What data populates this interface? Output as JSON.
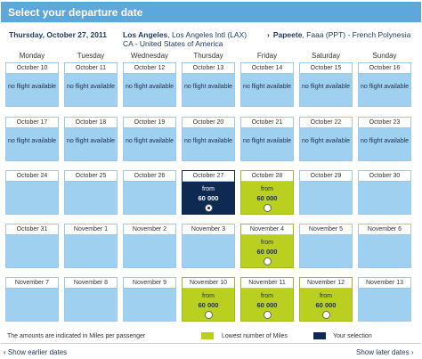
{
  "header": {
    "title": "Select your departure date"
  },
  "info": {
    "date": "Thursday, October 27, 2011",
    "from_city": "Los Angeles",
    "from_rest": ", Los Angeles Intl (LAX) CA - United States of America",
    "arrow": "›",
    "to_city": "Papeete",
    "to_rest": ", Faaa (PPT) - French Polynesia"
  },
  "weekdays": [
    "Monday",
    "Tuesday",
    "Wednesday",
    "Thursday",
    "Friday",
    "Saturday",
    "Sunday"
  ],
  "no_flight_text": "no flight available",
  "from_text": "from",
  "weeks": [
    [
      {
        "date": "October 10",
        "state": "none"
      },
      {
        "date": "October 11",
        "state": "none"
      },
      {
        "date": "October 12",
        "state": "none"
      },
      {
        "date": "October 13",
        "state": "none"
      },
      {
        "date": "October 14",
        "state": "none"
      },
      {
        "date": "October 15",
        "state": "none"
      },
      {
        "date": "October 16",
        "state": "none"
      }
    ],
    [
      {
        "date": "October 17",
        "state": "none"
      },
      {
        "date": "October 18",
        "state": "none"
      },
      {
        "date": "October 19",
        "state": "none"
      },
      {
        "date": "October 20",
        "state": "none"
      },
      {
        "date": "October 21",
        "state": "none"
      },
      {
        "date": "October 22",
        "state": "none"
      },
      {
        "date": "October 23",
        "state": "none"
      }
    ],
    [
      {
        "date": "October 24",
        "state": "blank"
      },
      {
        "date": "October 25",
        "state": "blank"
      },
      {
        "date": "October 26",
        "state": "blank"
      },
      {
        "date": "October 27",
        "state": "selected",
        "miles": "60 000"
      },
      {
        "date": "October 28",
        "state": "lowest",
        "miles": "60 000"
      },
      {
        "date": "October 29",
        "state": "blank"
      },
      {
        "date": "October 30",
        "state": "blank"
      }
    ],
    [
      {
        "date": "October 31",
        "state": "blank"
      },
      {
        "date": "November 1",
        "state": "blank"
      },
      {
        "date": "November 2",
        "state": "blank"
      },
      {
        "date": "November 3",
        "state": "blank"
      },
      {
        "date": "November 4",
        "state": "lowest",
        "miles": "60 000"
      },
      {
        "date": "November 5",
        "state": "blank"
      },
      {
        "date": "November 6",
        "state": "blank"
      }
    ],
    [
      {
        "date": "November 7",
        "state": "blank"
      },
      {
        "date": "November 8",
        "state": "blank"
      },
      {
        "date": "November 9",
        "state": "blank"
      },
      {
        "date": "November 10",
        "state": "lowest",
        "miles": "60 000"
      },
      {
        "date": "November 11",
        "state": "lowest",
        "miles": "60 000"
      },
      {
        "date": "November 12",
        "state": "lowest",
        "miles": "60 000"
      },
      {
        "date": "November 13",
        "state": "blank"
      }
    ]
  ],
  "footer": {
    "note": "The amounts are indicated in Miles per passenger",
    "legend_lowest": "Lowest number of Miles",
    "legend_selection": "Your selection",
    "earlier": "‹ Show earlier dates",
    "later": "Show later dates ›"
  },
  "colors": {
    "header": "#5ea7da",
    "cell": "#9fd0f0",
    "lowest": "#b9d020",
    "selected": "#0f2a52"
  }
}
